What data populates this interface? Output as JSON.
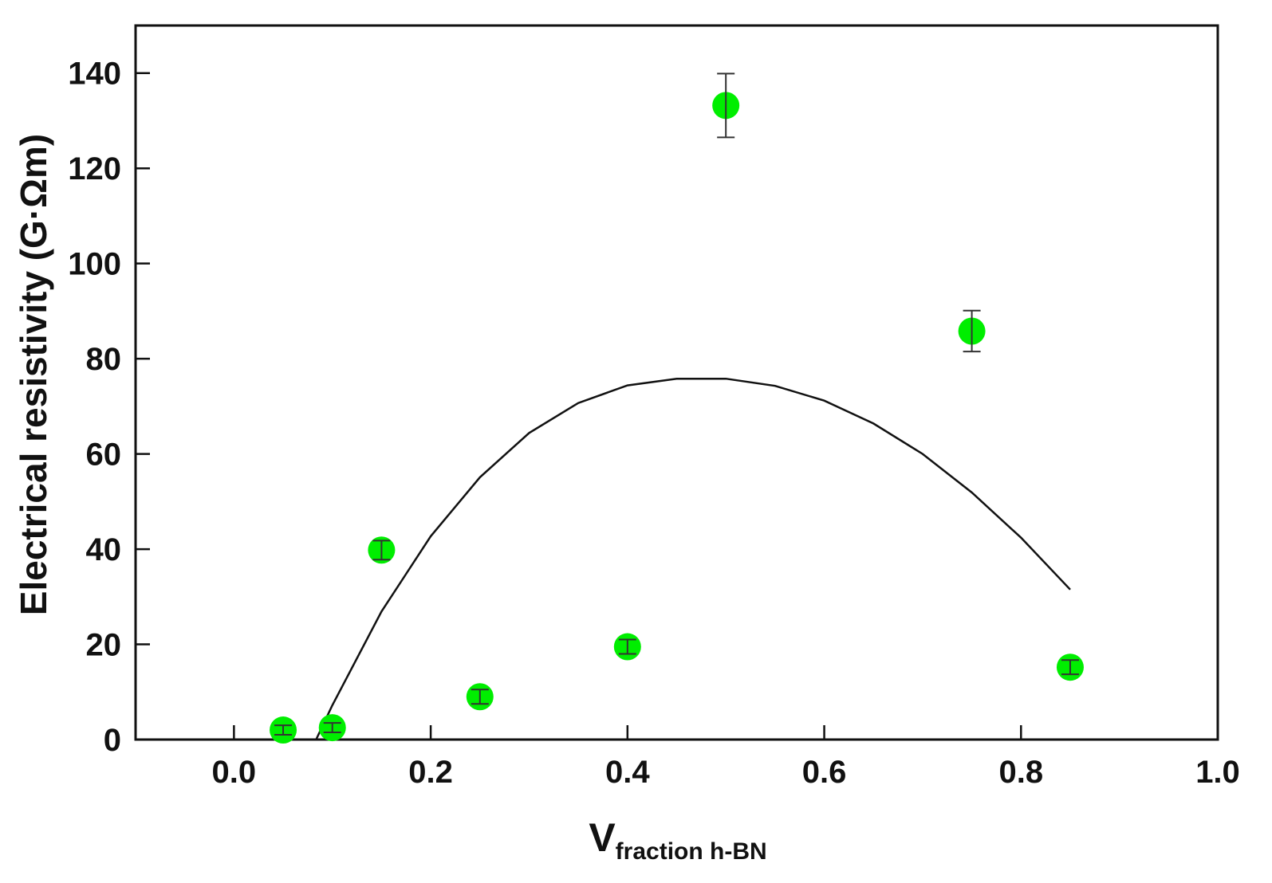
{
  "chart_data": {
    "type": "scatter",
    "xlabel": {
      "main": "V",
      "subscript": "fraction h-BN"
    },
    "ylabel": "Electrical resistivity (G·Ωm)",
    "xlim": [
      -0.1,
      1.0
    ],
    "ylim": [
      0,
      150
    ],
    "x_ticks": [
      0.0,
      0.2,
      0.4,
      0.6,
      0.8,
      1.0
    ],
    "x_tick_labels": [
      "0.0",
      "0.2",
      "0.4",
      "0.6",
      "0.8",
      "1.0"
    ],
    "y_ticks": [
      0,
      20,
      40,
      60,
      80,
      100,
      120,
      140
    ],
    "y_tick_labels": [
      "0",
      "20",
      "40",
      "60",
      "80",
      "100",
      "120",
      "140"
    ],
    "grid": false,
    "marker_color": "#00ee00",
    "curve_color": "#111111",
    "series": [
      {
        "type": "scatter",
        "points": [
          {
            "x": 0.05,
            "y": 2.0,
            "err": 1.0
          },
          {
            "x": 0.1,
            "y": 2.5,
            "err": 1.0
          },
          {
            "x": 0.15,
            "y": 39.8,
            "err": 2.0
          },
          {
            "x": 0.25,
            "y": 9.0,
            "err": 1.5
          },
          {
            "x": 0.4,
            "y": 19.5,
            "err": 1.5
          },
          {
            "x": 0.5,
            "y": 133.2,
            "err": 6.7
          },
          {
            "x": 0.75,
            "y": 85.8,
            "err": 4.3
          },
          {
            "x": 0.85,
            "y": 15.2,
            "err": 1.5
          }
        ]
      },
      {
        "type": "line",
        "points": [
          {
            "x": 0.0835,
            "y": 0.0
          },
          {
            "x": 0.1,
            "y": 7.2
          },
          {
            "x": 0.15,
            "y": 26.9
          },
          {
            "x": 0.2,
            "y": 42.7
          },
          {
            "x": 0.25,
            "y": 55.1
          },
          {
            "x": 0.3,
            "y": 64.4
          },
          {
            "x": 0.35,
            "y": 70.7
          },
          {
            "x": 0.4,
            "y": 74.4
          },
          {
            "x": 0.45,
            "y": 75.8
          },
          {
            "x": 0.5,
            "y": 75.8
          },
          {
            "x": 0.55,
            "y": 74.3
          },
          {
            "x": 0.6,
            "y": 71.2
          },
          {
            "x": 0.65,
            "y": 66.4
          },
          {
            "x": 0.7,
            "y": 60.0
          },
          {
            "x": 0.75,
            "y": 51.9
          },
          {
            "x": 0.8,
            "y": 42.4
          },
          {
            "x": 0.85,
            "y": 31.5
          }
        ]
      }
    ]
  }
}
